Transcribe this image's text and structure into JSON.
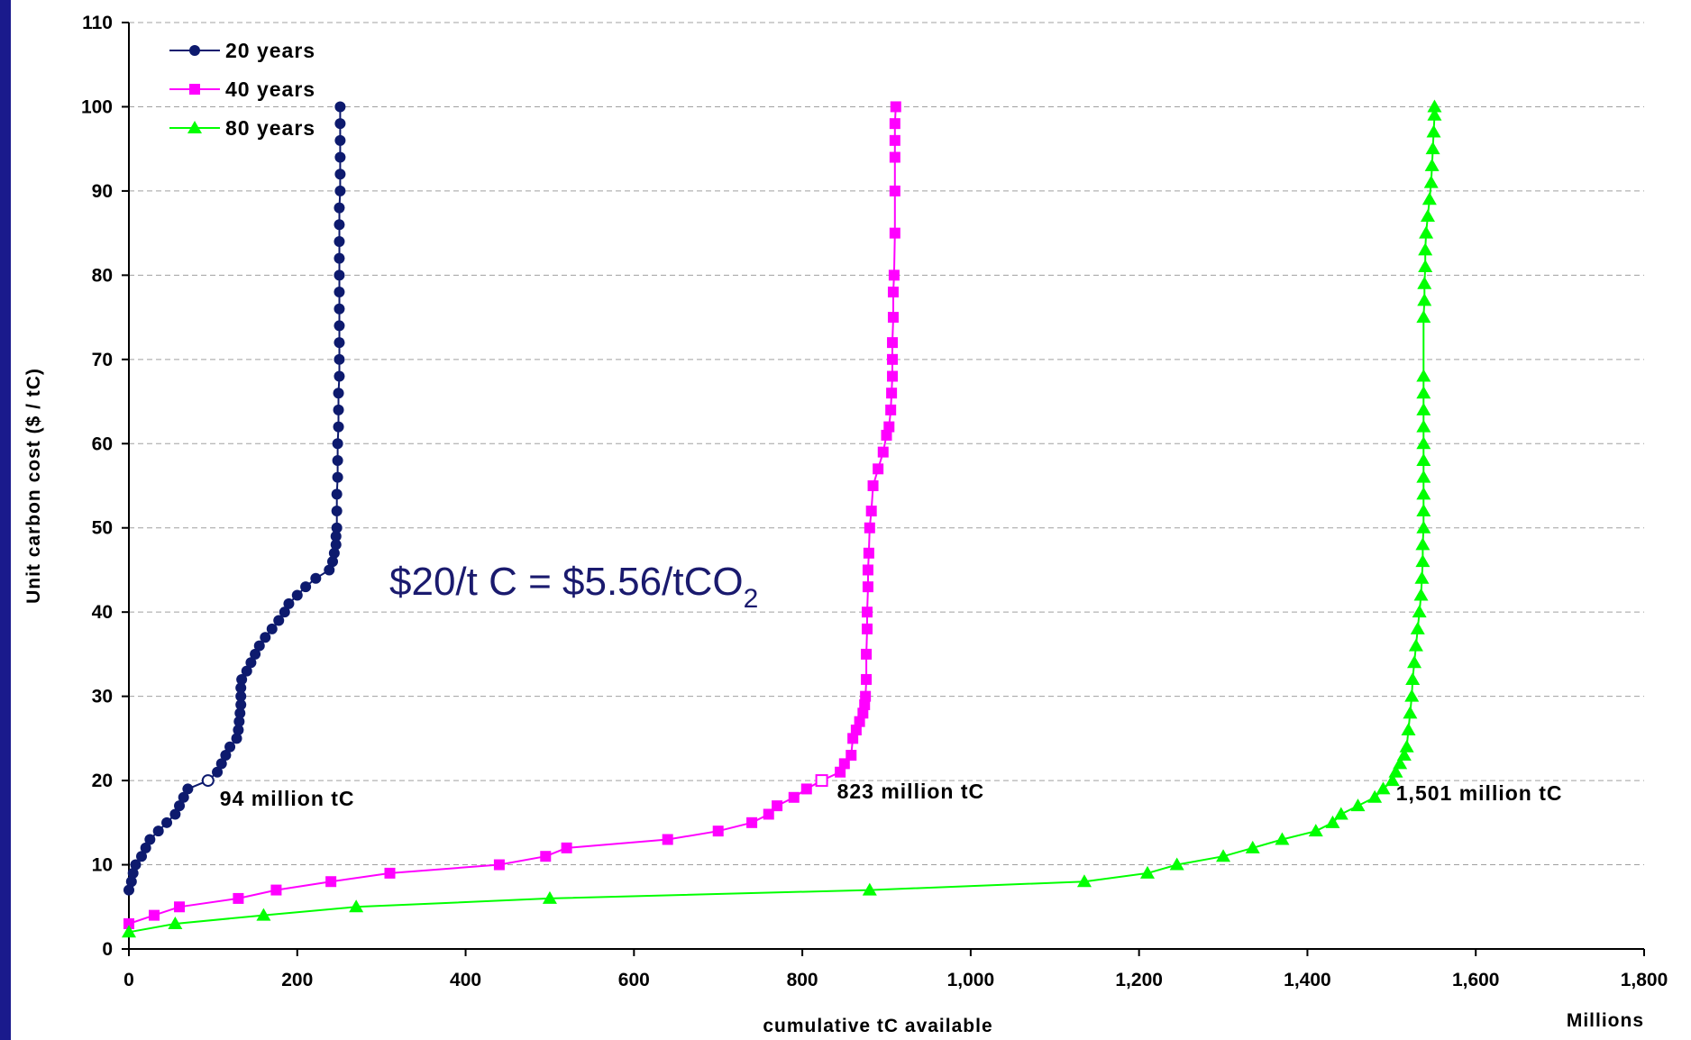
{
  "chart_data": {
    "type": "line",
    "title": "",
    "xlabel": "cumulative tC available",
    "xunit": "Millions",
    "ylabel": "Unit carbon cost ($ / tC)",
    "xlim": [
      0,
      1800
    ],
    "ylim": [
      0,
      110
    ],
    "x_ticks": [
      0,
      200,
      400,
      600,
      800,
      1000,
      1200,
      1400,
      1600,
      1800
    ],
    "x_tick_labels": [
      "0",
      "200",
      "400",
      "600",
      "800",
      "1,000",
      "1,200",
      "1,400",
      "1,600",
      "1,800"
    ],
    "y_ticks": [
      0,
      10,
      20,
      30,
      40,
      50,
      60,
      70,
      80,
      90,
      100,
      110
    ],
    "y_tick_labels": [
      "0",
      "10",
      "20",
      "30",
      "40",
      "50",
      "60",
      "70",
      "80",
      "90",
      "100",
      "110"
    ],
    "grid": "horizontal dashed",
    "legend_position": "top-left",
    "series": [
      {
        "name": "20 years",
        "color": "#0d1a6e",
        "marker": "circle",
        "points": [
          [
            0,
            7
          ],
          [
            3,
            8
          ],
          [
            5,
            9
          ],
          [
            8,
            10
          ],
          [
            15,
            11
          ],
          [
            20,
            12
          ],
          [
            25,
            13
          ],
          [
            35,
            14
          ],
          [
            45,
            15
          ],
          [
            55,
            16
          ],
          [
            60,
            17
          ],
          [
            65,
            18
          ],
          [
            70,
            19
          ],
          [
            94,
            20
          ],
          [
            105,
            21
          ],
          [
            110,
            22
          ],
          [
            115,
            23
          ],
          [
            120,
            24
          ],
          [
            128,
            25
          ],
          [
            130,
            26
          ],
          [
            131,
            27
          ],
          [
            132,
            28
          ],
          [
            133,
            29
          ],
          [
            133,
            30
          ],
          [
            133,
            31
          ],
          [
            134,
            32
          ],
          [
            140,
            33
          ],
          [
            145,
            34
          ],
          [
            150,
            35
          ],
          [
            155,
            36
          ],
          [
            162,
            37
          ],
          [
            170,
            38
          ],
          [
            178,
            39
          ],
          [
            185,
            40
          ],
          [
            190,
            41
          ],
          [
            200,
            42
          ],
          [
            210,
            43
          ],
          [
            222,
            44
          ],
          [
            238,
            45
          ],
          [
            242,
            46
          ],
          [
            244,
            47
          ],
          [
            246,
            48
          ],
          [
            246,
            49
          ],
          [
            247,
            50
          ],
          [
            247,
            52
          ],
          [
            247,
            54
          ],
          [
            248,
            56
          ],
          [
            248,
            58
          ],
          [
            248,
            60
          ],
          [
            249,
            62
          ],
          [
            249,
            64
          ],
          [
            249,
            66
          ],
          [
            250,
            68
          ],
          [
            250,
            70
          ],
          [
            250,
            72
          ],
          [
            250,
            74
          ],
          [
            250,
            76
          ],
          [
            250,
            78
          ],
          [
            250,
            80
          ],
          [
            250,
            82
          ],
          [
            250,
            84
          ],
          [
            250,
            86
          ],
          [
            250,
            88
          ],
          [
            251,
            90
          ],
          [
            251,
            92
          ],
          [
            251,
            94
          ],
          [
            251,
            96
          ],
          [
            251,
            98
          ],
          [
            251,
            100
          ]
        ]
      },
      {
        "name": "40 years",
        "color": "#ff00ff",
        "marker": "square",
        "points": [
          [
            0,
            3
          ],
          [
            30,
            4
          ],
          [
            60,
            5
          ],
          [
            130,
            6
          ],
          [
            175,
            7
          ],
          [
            240,
            8
          ],
          [
            310,
            9
          ],
          [
            440,
            10
          ],
          [
            495,
            11
          ],
          [
            520,
            12
          ],
          [
            640,
            13
          ],
          [
            700,
            14
          ],
          [
            740,
            15
          ],
          [
            760,
            16
          ],
          [
            770,
            17
          ],
          [
            790,
            18
          ],
          [
            805,
            19
          ],
          [
            823,
            20
          ],
          [
            845,
            21
          ],
          [
            850,
            22
          ],
          [
            858,
            23
          ],
          [
            860,
            25
          ],
          [
            864,
            26
          ],
          [
            868,
            27
          ],
          [
            872,
            28
          ],
          [
            874,
            29
          ],
          [
            875,
            30
          ],
          [
            876,
            32
          ],
          [
            876,
            35
          ],
          [
            877,
            38
          ],
          [
            877,
            40
          ],
          [
            878,
            43
          ],
          [
            878,
            45
          ],
          [
            879,
            47
          ],
          [
            880,
            50
          ],
          [
            882,
            52
          ],
          [
            884,
            55
          ],
          [
            890,
            57
          ],
          [
            896,
            59
          ],
          [
            900,
            61
          ],
          [
            903,
            62
          ],
          [
            905,
            64
          ],
          [
            906,
            66
          ],
          [
            907,
            68
          ],
          [
            907,
            70
          ],
          [
            907,
            72
          ],
          [
            908,
            75
          ],
          [
            908,
            78
          ],
          [
            909,
            80
          ],
          [
            910,
            85
          ],
          [
            910,
            90
          ],
          [
            910,
            94
          ],
          [
            910,
            96
          ],
          [
            910,
            98
          ],
          [
            911,
            100
          ]
        ]
      },
      {
        "name": "80 years",
        "color": "#00ff00",
        "marker": "triangle",
        "points": [
          [
            0,
            2
          ],
          [
            55,
            3
          ],
          [
            160,
            4
          ],
          [
            270,
            5
          ],
          [
            500,
            6
          ],
          [
            880,
            7
          ],
          [
            1135,
            8
          ],
          [
            1210,
            9
          ],
          [
            1245,
            10
          ],
          [
            1300,
            11
          ],
          [
            1335,
            12
          ],
          [
            1370,
            13
          ],
          [
            1410,
            14
          ],
          [
            1430,
            15
          ],
          [
            1440,
            16
          ],
          [
            1460,
            17
          ],
          [
            1480,
            18
          ],
          [
            1490,
            19
          ],
          [
            1501,
            20
          ],
          [
            1505,
            21
          ],
          [
            1510,
            22
          ],
          [
            1515,
            23
          ],
          [
            1518,
            24
          ],
          [
            1520,
            26
          ],
          [
            1522,
            28
          ],
          [
            1524,
            30
          ],
          [
            1525,
            32
          ],
          [
            1527,
            34
          ],
          [
            1529,
            36
          ],
          [
            1531,
            38
          ],
          [
            1533,
            40
          ],
          [
            1535,
            42
          ],
          [
            1536,
            44
          ],
          [
            1537,
            46
          ],
          [
            1537,
            48
          ],
          [
            1538,
            50
          ],
          [
            1538,
            52
          ],
          [
            1538,
            54
          ],
          [
            1538,
            56
          ],
          [
            1538,
            58
          ],
          [
            1538,
            60
          ],
          [
            1538,
            62
          ],
          [
            1538,
            64
          ],
          [
            1538,
            66
          ],
          [
            1538,
            68
          ],
          [
            1538,
            75
          ],
          [
            1539,
            77
          ],
          [
            1539,
            79
          ],
          [
            1540,
            81
          ],
          [
            1540,
            83
          ],
          [
            1541,
            85
          ],
          [
            1543,
            87
          ],
          [
            1545,
            89
          ],
          [
            1547,
            91
          ],
          [
            1548,
            93
          ],
          [
            1549,
            95
          ],
          [
            1550,
            97
          ],
          [
            1551,
            99
          ],
          [
            1551,
            100
          ]
        ]
      }
    ],
    "annotations": [
      {
        "text": "94 million tC",
        "x": 94,
        "y": 20,
        "series": 0,
        "marker": "open-circle"
      },
      {
        "text": "823 million tC",
        "x": 823,
        "y": 20,
        "series": 1,
        "marker": "open-square"
      },
      {
        "text": "1,501 million tC",
        "x": 1501,
        "y": 20,
        "series": 2,
        "marker": "none"
      }
    ],
    "callout": {
      "main": "$20/t C = $5.56/tCO",
      "subscript": "2",
      "color": "#1a1a6e"
    }
  }
}
